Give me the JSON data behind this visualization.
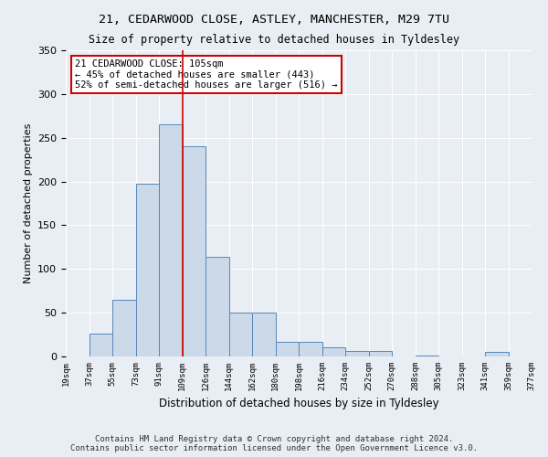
{
  "title": "21, CEDARWOOD CLOSE, ASTLEY, MANCHESTER, M29 7TU",
  "subtitle": "Size of property relative to detached houses in Tyldesley",
  "xlabel": "Distribution of detached houses by size in Tyldesley",
  "ylabel": "Number of detached properties",
  "bar_heights": [
    0,
    26,
    65,
    197,
    265,
    240,
    114,
    50,
    50,
    17,
    17,
    10,
    6,
    6,
    0,
    1,
    0,
    0,
    5,
    0
  ],
  "bin_labels": [
    "19sqm",
    "37sqm",
    "55sqm",
    "73sqm",
    "91sqm",
    "109sqm",
    "126sqm",
    "144sqm",
    "162sqm",
    "180sqm",
    "198sqm",
    "216sqm",
    "234sqm",
    "252sqm",
    "270sqm",
    "288sqm",
    "305sqm",
    "323sqm",
    "341sqm",
    "359sqm",
    "377sqm"
  ],
  "bar_color": "#ccd9e8",
  "bar_edge_color": "#5588bb",
  "vline_color": "#cc0000",
  "vline_x_index": 5,
  "annotation_text": "21 CEDARWOOD CLOSE: 105sqm\n← 45% of detached houses are smaller (443)\n52% of semi-detached houses are larger (516) →",
  "annotation_box_color": "#ffffff",
  "annotation_box_edge_color": "#cc0000",
  "ylim": [
    0,
    350
  ],
  "yticks": [
    0,
    50,
    100,
    150,
    200,
    250,
    300,
    350
  ],
  "footer": "Contains HM Land Registry data © Crown copyright and database right 2024.\nContains public sector information licensed under the Open Government Licence v3.0.",
  "bg_color": "#e8eef4",
  "grid_color": "#ffffff"
}
